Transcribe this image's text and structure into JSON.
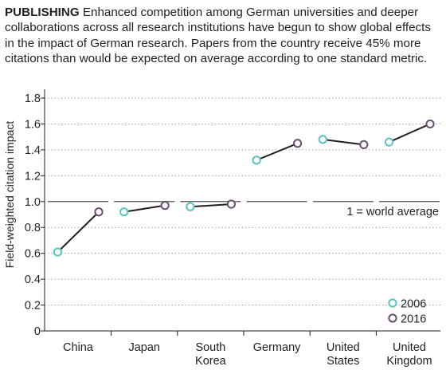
{
  "caption": {
    "lead": "PUBLISHING",
    "text": " Enhanced competition among German universities and deeper collaborations across all research institutions have begun to show global effects in the impact of German research. Papers from the country receive 45% more citations than would be expected on average according to one standard metric."
  },
  "chart_data": {
    "type": "line",
    "ylabel": "Field-weighted citation impact",
    "ylim": [
      0,
      1.8
    ],
    "yticks": [
      "0",
      "0.2",
      "0.4",
      "0.6",
      "0.8",
      "1.0",
      "1.2",
      "1.4",
      "1.6",
      "1.8"
    ],
    "grid": "dotted horizontal",
    "reference_line": {
      "value": 1.0,
      "label": "1 = world average"
    },
    "categories": [
      {
        "lines": [
          "China"
        ]
      },
      {
        "lines": [
          "Japan"
        ]
      },
      {
        "lines": [
          "South",
          "Korea"
        ]
      },
      {
        "lines": [
          "Germany"
        ]
      },
      {
        "lines": [
          "United",
          "States"
        ]
      },
      {
        "lines": [
          "United",
          "Kingdom"
        ]
      }
    ],
    "series": [
      {
        "name": "2006",
        "color": "#5bc3c1",
        "values": [
          0.61,
          0.92,
          0.96,
          1.32,
          1.48,
          1.46
        ]
      },
      {
        "name": "2016",
        "color": "#6b4e71",
        "values": [
          0.92,
          0.97,
          0.98,
          1.45,
          1.44,
          1.6
        ]
      }
    ],
    "legend_position": "bottom-right"
  }
}
